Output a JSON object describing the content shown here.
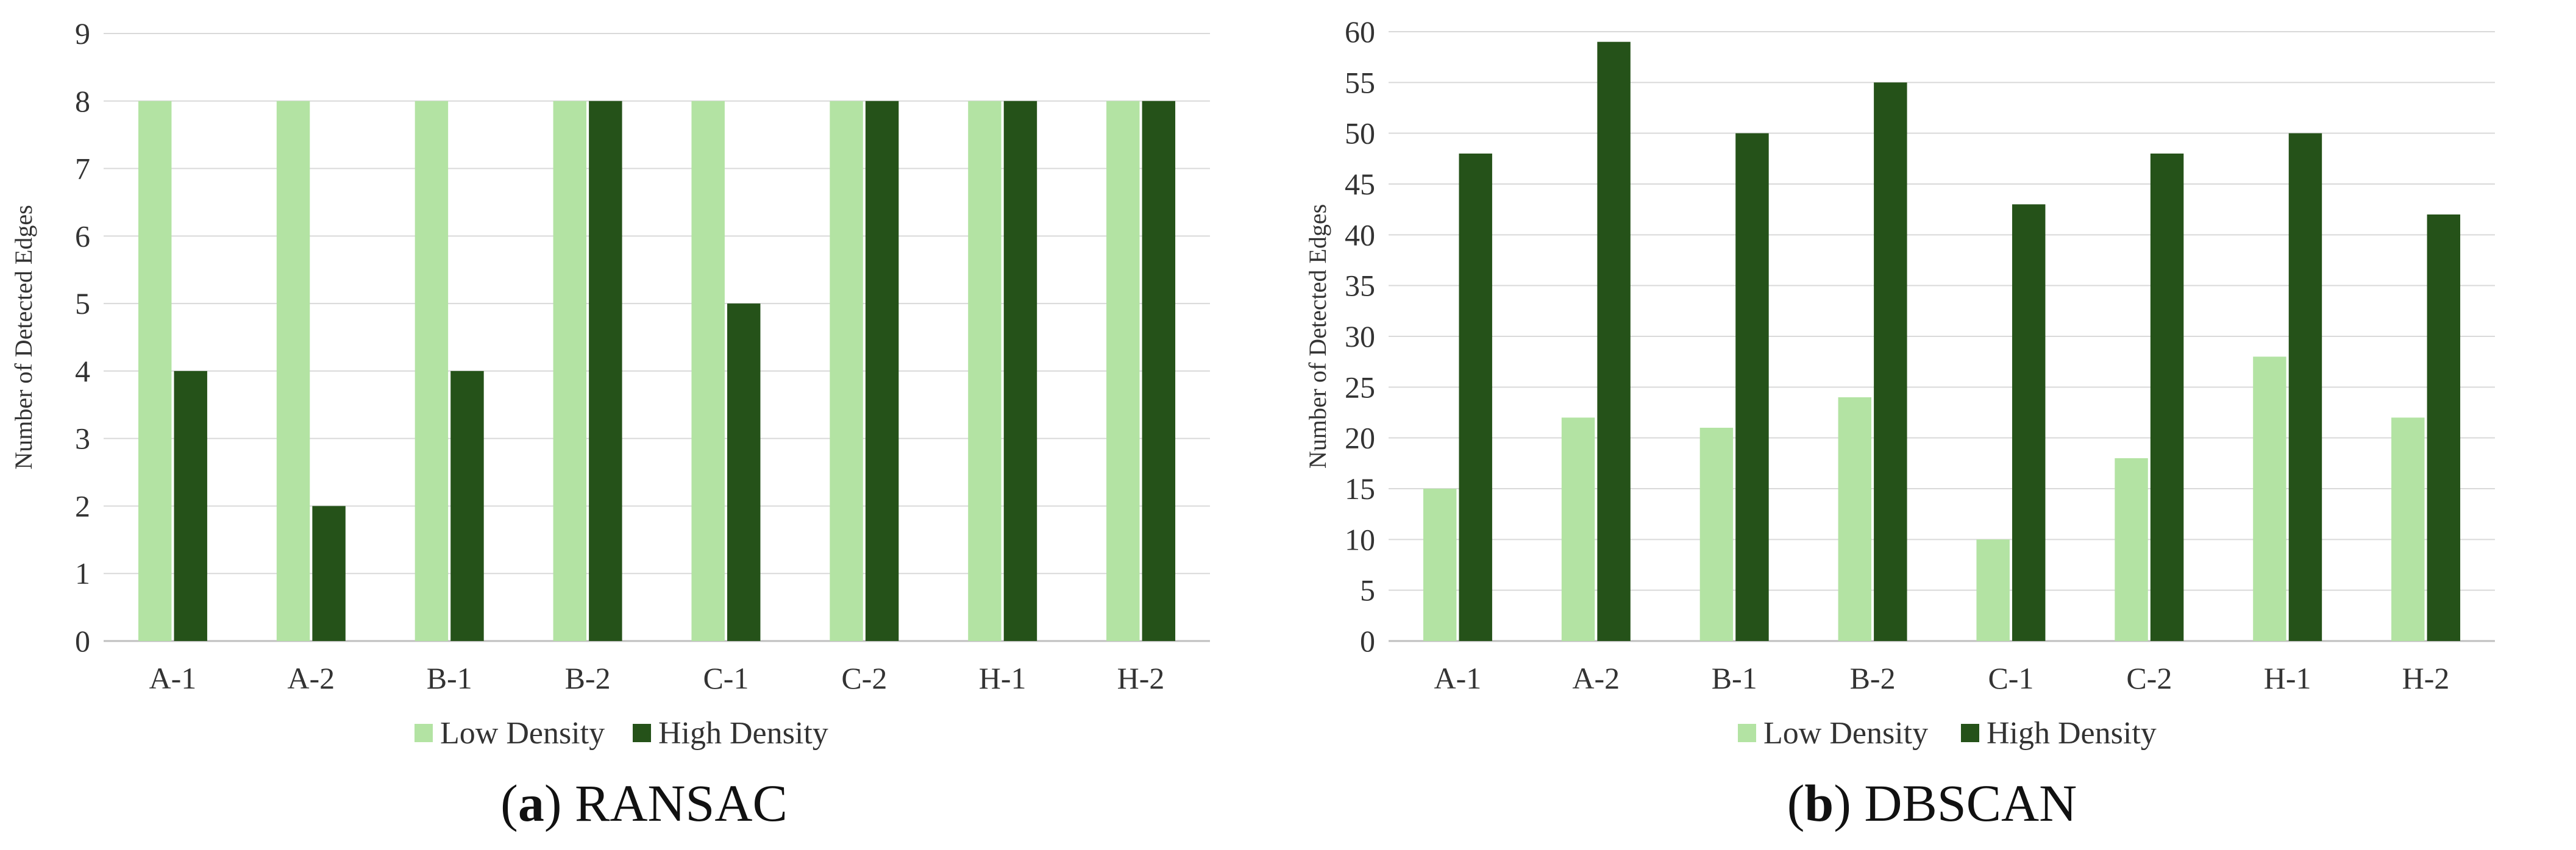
{
  "chart_data": [
    {
      "type": "bar",
      "caption_letter": "a",
      "caption_text": "RANSAC",
      "ylabel": "Number of Detected Edges",
      "xlabel": "",
      "ylim": [
        0,
        9
      ],
      "yticks": [
        0,
        1,
        2,
        3,
        4,
        5,
        6,
        7,
        8,
        9
      ],
      "grid": true,
      "legend_position": "bottom",
      "categories": [
        "A-1",
        "A-2",
        "B-1",
        "B-2",
        "C-1",
        "C-2",
        "H-1",
        "H-2"
      ],
      "series": [
        {
          "name": "Low Density",
          "color": "#b3e3a3",
          "values": [
            8,
            8,
            8,
            8,
            8,
            8,
            8,
            8
          ]
        },
        {
          "name": "High Density",
          "color": "#255219",
          "values": [
            4,
            2,
            4,
            8,
            5,
            8,
            8,
            8
          ]
        }
      ]
    },
    {
      "type": "bar",
      "caption_letter": "b",
      "caption_text": "DBSCAN",
      "ylabel": "Number of Detected Edges",
      "xlabel": "",
      "ylim": [
        0,
        60
      ],
      "yticks": [
        0,
        5,
        10,
        15,
        20,
        25,
        30,
        35,
        40,
        45,
        50,
        55,
        60
      ],
      "grid": true,
      "legend_position": "bottom",
      "categories": [
        "A-1",
        "A-2",
        "B-1",
        "B-2",
        "C-1",
        "C-2",
        "H-1",
        "H-2"
      ],
      "series": [
        {
          "name": "Low Density",
          "color": "#b3e3a3",
          "values": [
            15,
            22,
            21,
            24,
            10,
            18,
            28,
            22
          ]
        },
        {
          "name": "High Density",
          "color": "#255219",
          "values": [
            48,
            59,
            50,
            55,
            43,
            48,
            50,
            42
          ]
        }
      ]
    }
  ]
}
